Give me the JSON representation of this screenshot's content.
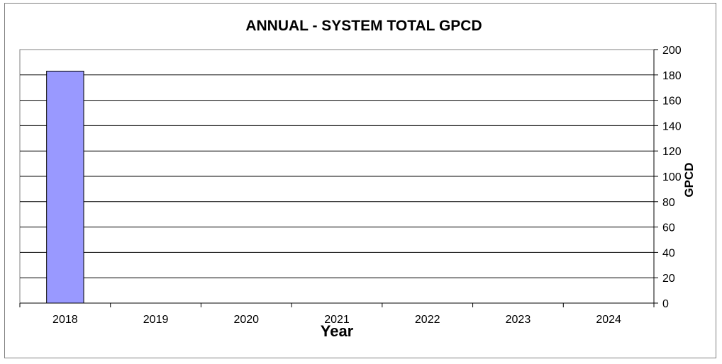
{
  "chart_data": {
    "type": "bar",
    "title": "ANNUAL - SYSTEM TOTAL GPCD",
    "xlabel": "Year",
    "ylabel": "GPCD",
    "categories": [
      "2018",
      "2019",
      "2020",
      "2021",
      "2022",
      "2023",
      "2024"
    ],
    "series": [
      {
        "values": [
          183,
          null,
          null,
          null,
          null,
          null,
          null
        ]
      }
    ],
    "ylim": [
      0,
      200
    ],
    "yticks": [
      0,
      20,
      40,
      60,
      80,
      100,
      120,
      140,
      160,
      180,
      200
    ],
    "y_axis_side": "right",
    "grid": true,
    "legend": false,
    "colors": {
      "bar": "#9999ff",
      "bar_outline": "#000000",
      "grid": "#000000",
      "plot_border": "#808080"
    }
  }
}
